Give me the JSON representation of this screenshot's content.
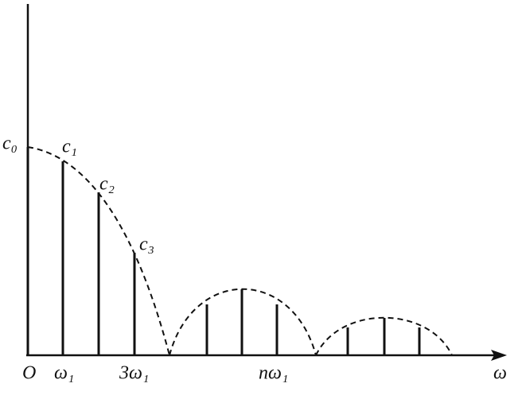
{
  "labels": {
    "c0": "c₀",
    "c1": "c₁",
    "c2": "c₂",
    "c3": "c₃",
    "origin": "O",
    "w1": "ω₁",
    "w3": "3ω₁",
    "wn": "nω₁",
    "axis": "ω"
  }
}
